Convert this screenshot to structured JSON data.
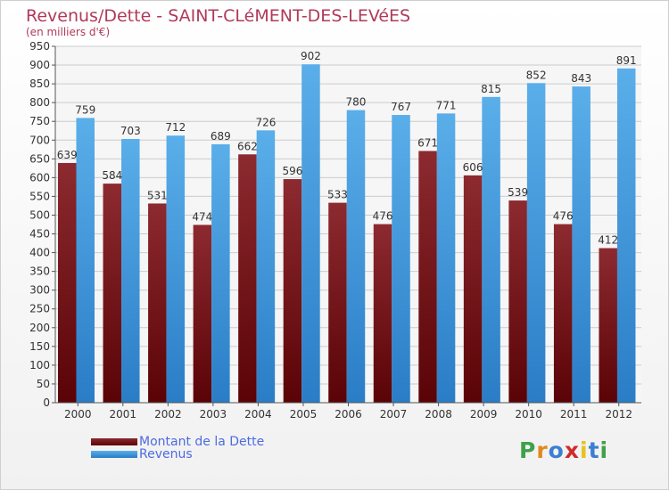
{
  "header": {
    "title": "Revenus/Dette - SAINT-CLéMENT-DES-LEVéES",
    "subtitle": "(en milliers d'€)"
  },
  "legend": {
    "debt_label": "Montant de la Dette",
    "revenue_label": "Revenus"
  },
  "logo": {
    "letters": [
      "P",
      "r",
      "o",
      "x",
      "i",
      "t",
      "i"
    ],
    "colors": [
      "#3fa14a",
      "#e08a1c",
      "#3b7fd2",
      "#d02b2b",
      "#e7c21b",
      "#3b7fd2",
      "#3fa14a"
    ]
  },
  "colors": {
    "debt": "#7a0f12",
    "revenue": "#3a9de6"
  },
  "chart_data": {
    "type": "bar",
    "categories": [
      "2000",
      "2001",
      "2002",
      "2003",
      "2004",
      "2005",
      "2006",
      "2007",
      "2008",
      "2009",
      "2010",
      "2011",
      "2012"
    ],
    "series": [
      {
        "name": "Montant de la Dette",
        "values": [
          639,
          584,
          531,
          474,
          662,
          596,
          533,
          476,
          671,
          606,
          539,
          476,
          412
        ]
      },
      {
        "name": "Revenus",
        "values": [
          759,
          703,
          712,
          689,
          726,
          902,
          780,
          767,
          771,
          815,
          852,
          843,
          891
        ]
      }
    ],
    "ylim": [
      0,
      950
    ],
    "ytick_step": 50,
    "grid": true,
    "legend_position": "bottom-left"
  }
}
